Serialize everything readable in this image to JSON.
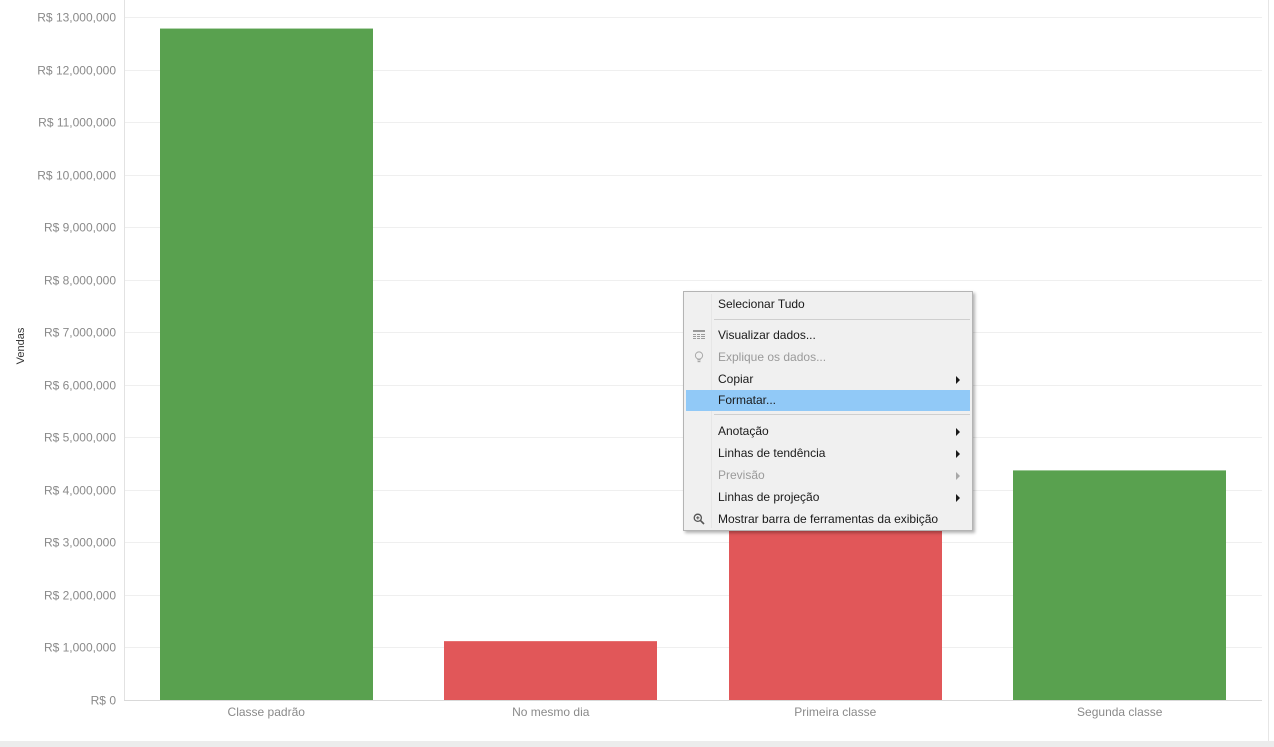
{
  "chart_data": {
    "type": "bar",
    "categories": [
      "Classe padrão",
      "No mesmo dia",
      "Primeira classe",
      "Segunda classe"
    ],
    "values": [
      12780000,
      1120000,
      3780000,
      4370000
    ],
    "colors": [
      "#59a14f",
      "#e15759",
      "#e15759",
      "#59a14f"
    ],
    "ylabel": "Vendas",
    "xlabel": "",
    "ylim": [
      0,
      13000000
    ],
    "yticks": [
      0,
      1000000,
      2000000,
      3000000,
      4000000,
      5000000,
      6000000,
      7000000,
      8000000,
      9000000,
      10000000,
      11000000,
      12000000,
      13000000
    ],
    "ytick_labels": [
      "R$ 0",
      "R$ 1,000,000",
      "R$ 2,000,000",
      "R$ 3,000,000",
      "R$ 4,000,000",
      "R$ 5,000,000",
      "R$ 6,000,000",
      "R$ 7,000,000",
      "R$ 8,000,000",
      "R$ 9,000,000",
      "R$ 10,000,000",
      "R$ 11,000,000",
      "R$ 12,000,000",
      "R$ 13,000,000"
    ],
    "grid": true
  },
  "context_menu": {
    "items": [
      {
        "label": "Selecionar Tudo",
        "icon": "",
        "enabled": true,
        "submenu": false,
        "highlighted": false
      },
      {
        "label": "Visualizar dados...",
        "icon": "table-icon",
        "enabled": true,
        "submenu": false,
        "highlighted": false
      },
      {
        "label": "Explique os dados...",
        "icon": "lightbulb-icon",
        "enabled": false,
        "submenu": false,
        "highlighted": false
      },
      {
        "label": "Copiar",
        "icon": "",
        "enabled": true,
        "submenu": true,
        "highlighted": false
      },
      {
        "label": "Formatar...",
        "icon": "",
        "enabled": true,
        "submenu": false,
        "highlighted": true
      },
      {
        "label": "Anotação",
        "icon": "",
        "enabled": true,
        "submenu": true,
        "highlighted": false
      },
      {
        "label": "Linhas de tendência",
        "icon": "",
        "enabled": true,
        "submenu": true,
        "highlighted": false
      },
      {
        "label": "Previsão",
        "icon": "",
        "enabled": false,
        "submenu": true,
        "highlighted": false
      },
      {
        "label": "Linhas de projeção",
        "icon": "",
        "enabled": true,
        "submenu": true,
        "highlighted": false
      },
      {
        "label": "Mostrar barra de ferramentas da exibição",
        "icon": "zoom-icon",
        "enabled": true,
        "submenu": false,
        "highlighted": false
      }
    ]
  }
}
